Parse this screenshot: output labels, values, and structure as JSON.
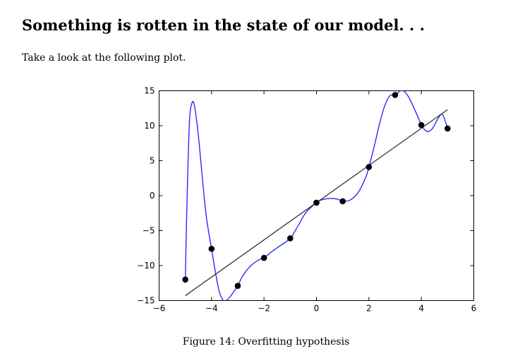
{
  "section": {
    "heading": "Something is rotten in the state of our model. . .",
    "intro": "Take a look at the following plot."
  },
  "figure": {
    "caption": "Figure 14: Overfitting hypothesis"
  },
  "chart_data": {
    "type": "scatter",
    "title": "",
    "xlabel": "",
    "ylabel": "",
    "xlim": [
      -6,
      6
    ],
    "ylim": [
      -15,
      15
    ],
    "x_ticks": [
      -6,
      -4,
      -2,
      0,
      2,
      4,
      6
    ],
    "y_ticks": [
      15,
      10,
      5,
      0,
      -5,
      -10,
      -15
    ],
    "x_tick_labels": [
      "−6",
      "−4",
      "−2",
      "0",
      "2",
      "4",
      "6"
    ],
    "y_tick_labels": [
      "15",
      "10",
      "5",
      "0",
      "−5",
      "−10",
      "−15"
    ],
    "grid": false,
    "series": [
      {
        "kind": "points",
        "color": "#000000",
        "x": [
          -5,
          -4,
          -3,
          -2,
          -1,
          0,
          1,
          2,
          3,
          4,
          5
        ],
        "y": [
          -12.0,
          -7.6,
          -12.9,
          -8.9,
          -6.1,
          -1.0,
          -0.8,
          4.1,
          14.4,
          10.1,
          9.6
        ]
      },
      {
        "kind": "line",
        "color": "#333333",
        "x": [
          -5,
          5
        ],
        "y": [
          -14.3,
          12.3
        ]
      },
      {
        "kind": "curve",
        "color": "#2b2bff",
        "x": [
          -5,
          -4.95,
          -4.85,
          -4.75,
          -4.65,
          -4.5,
          -4.35,
          -4.2,
          -4.0,
          -3.85,
          -3.7,
          -3.55,
          -3.45,
          -3.3,
          -3.15,
          -3.0,
          -2.8,
          -2.5,
          -2.2,
          -2.0,
          -1.7,
          -1.4,
          -1.0,
          -0.7,
          -0.4,
          0.0,
          0.2,
          0.5,
          0.8,
          1.0,
          1.3,
          1.6,
          1.9,
          2.0,
          2.2,
          2.4,
          2.6,
          2.8,
          3.0,
          3.2,
          3.35,
          3.5,
          3.7,
          3.9,
          4.0,
          4.2,
          4.4,
          4.6,
          4.75,
          4.85,
          5.0
        ],
        "y": [
          -12.0,
          -3.0,
          10.0,
          13.2,
          12.8,
          8.5,
          2.5,
          -3.0,
          -7.6,
          -11.0,
          -13.8,
          -15.0,
          -15.0,
          -14.5,
          -13.7,
          -12.9,
          -11.4,
          -10.0,
          -9.2,
          -8.9,
          -8.0,
          -7.2,
          -6.1,
          -4.3,
          -2.4,
          -1.0,
          -0.6,
          -0.4,
          -0.5,
          -0.8,
          -0.6,
          0.5,
          2.8,
          4.1,
          7.0,
          10.2,
          12.8,
          14.3,
          14.4,
          15.0,
          14.9,
          14.2,
          12.7,
          11.0,
          10.1,
          9.2,
          9.5,
          10.8,
          11.6,
          11.3,
          9.6
        ]
      }
    ]
  }
}
